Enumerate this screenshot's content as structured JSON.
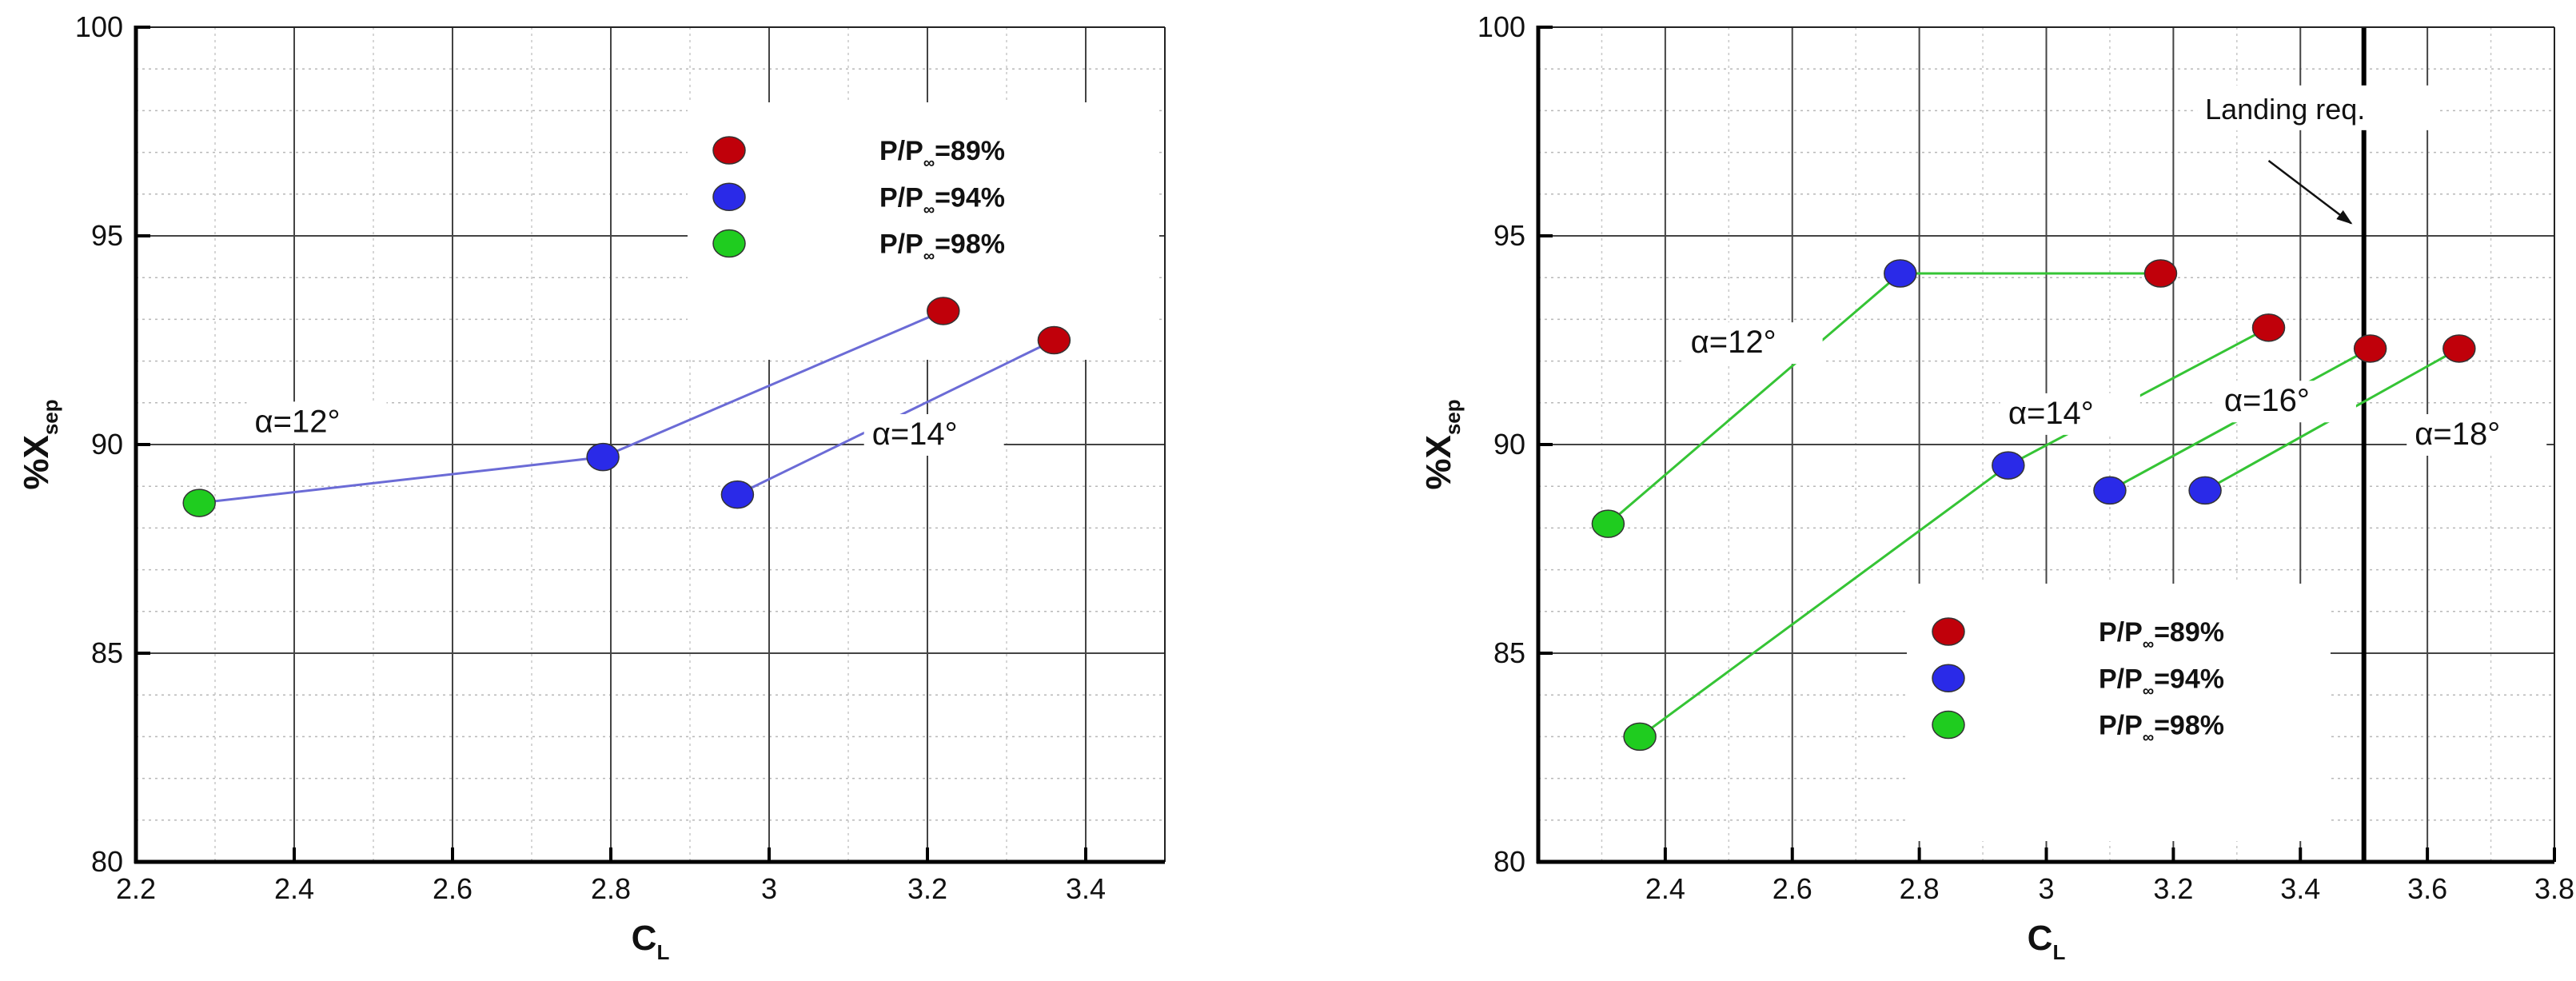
{
  "colors": {
    "p89": "#c0000a",
    "p94": "#2a2ae8",
    "p98": "#1fcc1f",
    "left_line": "#6b6bd6",
    "right_line": "#35c435"
  },
  "chart_data": [
    {
      "type": "scatter",
      "xlabel_main": "C",
      "xlabel_sub": "L",
      "ylabel_main": "%X",
      "ylabel_sub": "sep",
      "xlim": [
        2.2,
        3.5
      ],
      "ylim": [
        80,
        100
      ],
      "x_ticks": [
        2.2,
        2.4,
        2.6,
        2.8,
        3,
        3.2,
        3.4
      ],
      "x_tick_labels": [
        "2.2",
        "2.4",
        "2.6",
        "2.8",
        "3",
        "3.2",
        "3.4"
      ],
      "y_ticks": [
        80,
        85,
        90,
        95,
        100
      ],
      "y_tick_labels": [
        "80",
        "85",
        "90",
        "95",
        "100"
      ],
      "grid": true,
      "legend": [
        {
          "main": "P/P",
          "sub": "∞",
          "suffix": "=89%",
          "color_key": "p89"
        },
        {
          "main": "P/P",
          "sub": "∞",
          "suffix": "=94%",
          "color_key": "p94"
        },
        {
          "main": "P/P",
          "sub": "∞",
          "suffix": "=98%",
          "color_key": "p98"
        }
      ],
      "legend_position": "top-right",
      "lines": [
        {
          "label": "α=12°",
          "points": [
            [
              2.28,
              88.6
            ],
            [
              2.79,
              89.7
            ],
            [
              3.22,
              93.2
            ]
          ]
        },
        {
          "label": "α=14°",
          "points": [
            [
              2.96,
              88.8
            ],
            [
              3.36,
              92.5
            ]
          ]
        }
      ],
      "points": [
        {
          "x": 2.28,
          "y": 88.6,
          "color_key": "p98"
        },
        {
          "x": 2.79,
          "y": 89.7,
          "color_key": "p94"
        },
        {
          "x": 3.22,
          "y": 93.2,
          "color_key": "p89"
        },
        {
          "x": 2.96,
          "y": 88.8,
          "color_key": "p94"
        },
        {
          "x": 3.36,
          "y": 92.5,
          "color_key": "p89"
        }
      ],
      "annotations": [
        {
          "text": "α=12°",
          "x": 2.35,
          "y": 90.3
        },
        {
          "text": "α=14°",
          "x": 3.13,
          "y": 90.0
        }
      ]
    },
    {
      "type": "scatter",
      "xlabel_main": "C",
      "xlabel_sub": "L",
      "ylabel_main": "%X",
      "ylabel_sub": "sep",
      "xlim": [
        2.2,
        3.8
      ],
      "ylim": [
        80,
        100
      ],
      "x_ticks": [
        2.4,
        2.6,
        2.8,
        3,
        3.2,
        3.4,
        3.6,
        3.8
      ],
      "x_tick_labels": [
        "2.4",
        "2.6",
        "2.8",
        "3",
        "3.2",
        "3.4",
        "3.6",
        "3.8"
      ],
      "y_ticks": [
        80,
        85,
        90,
        95,
        100
      ],
      "y_tick_labels": [
        "80",
        "85",
        "90",
        "95",
        "100"
      ],
      "grid": true,
      "legend": [
        {
          "main": "P/P",
          "sub": "∞",
          "suffix": "=89%",
          "color_key": "p89"
        },
        {
          "main": "P/P",
          "sub": "∞",
          "suffix": "=94%",
          "color_key": "p94"
        },
        {
          "main": "P/P",
          "sub": "∞",
          "suffix": "=98%",
          "color_key": "p98"
        }
      ],
      "legend_position": "bottom-right",
      "lines": [
        {
          "label": "α=12°",
          "points": [
            [
              2.31,
              88.1
            ],
            [
              2.77,
              94.1
            ],
            [
              3.18,
              94.1
            ]
          ]
        },
        {
          "label": "α=14°",
          "points": [
            [
              2.36,
              83.0
            ],
            [
              2.94,
              89.5
            ],
            [
              3.35,
              92.8
            ]
          ]
        },
        {
          "label": "α=16°",
          "points": [
            [
              3.1,
              88.9
            ],
            [
              3.51,
              92.3
            ]
          ]
        },
        {
          "label": "α=18°",
          "points": [
            [
              3.25,
              88.9
            ],
            [
              3.65,
              92.3
            ]
          ]
        }
      ],
      "points": [
        {
          "x": 2.31,
          "y": 88.1,
          "color_key": "p98"
        },
        {
          "x": 2.77,
          "y": 94.1,
          "color_key": "p94"
        },
        {
          "x": 3.18,
          "y": 94.1,
          "color_key": "p89"
        },
        {
          "x": 2.36,
          "y": 83.0,
          "color_key": "p98"
        },
        {
          "x": 2.94,
          "y": 89.5,
          "color_key": "p94"
        },
        {
          "x": 3.35,
          "y": 92.8,
          "color_key": "p89"
        },
        {
          "x": 3.1,
          "y": 88.9,
          "color_key": "p94"
        },
        {
          "x": 3.51,
          "y": 92.3,
          "color_key": "p89"
        },
        {
          "x": 3.25,
          "y": 88.9,
          "color_key": "p94"
        },
        {
          "x": 3.65,
          "y": 92.3,
          "color_key": "p89"
        }
      ],
      "annotations": [
        {
          "text": "α=12°",
          "x": 2.44,
          "y": 92.2
        },
        {
          "text": "α=14°",
          "x": 2.94,
          "y": 90.5
        },
        {
          "text": "α=16°",
          "x": 3.28,
          "y": 90.8
        },
        {
          "text": "α=18°",
          "x": 3.58,
          "y": 90.0
        }
      ],
      "reference_line": {
        "x": 3.5,
        "label": "Landing req.",
        "label_x": 3.25,
        "label_y": 97.8,
        "arrow_from": [
          3.35,
          96.8
        ],
        "arrow_to": [
          3.48,
          95.3
        ]
      }
    }
  ]
}
